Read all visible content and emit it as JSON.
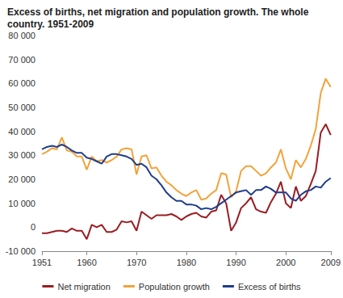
{
  "chart_data": {
    "type": "line",
    "title": "Excess of births, net migration and population growth. The whole country. 1951-2009",
    "x": [
      1951,
      1952,
      1953,
      1954,
      1955,
      1956,
      1957,
      1958,
      1959,
      1960,
      1961,
      1962,
      1963,
      1964,
      1965,
      1966,
      1967,
      1968,
      1969,
      1970,
      1971,
      1972,
      1973,
      1974,
      1975,
      1976,
      1977,
      1978,
      1979,
      1980,
      1981,
      1982,
      1983,
      1984,
      1985,
      1986,
      1987,
      1988,
      1989,
      1990,
      1991,
      1992,
      1993,
      1994,
      1995,
      1996,
      1997,
      1998,
      1999,
      2000,
      2001,
      2002,
      2003,
      2004,
      2005,
      2006,
      2007,
      2008,
      2009
    ],
    "xlim": [
      1951,
      2009
    ],
    "xticks": [
      1951,
      1960,
      1970,
      1980,
      1990,
      2000,
      2009
    ],
    "ylim": [
      -10000,
      80000
    ],
    "yticks": [
      {
        "value": -10000,
        "label": "-10 000"
      },
      0,
      {
        "value": 10000,
        "label": "10 000"
      },
      {
        "value": 20000,
        "label": "20 000"
      },
      {
        "value": 30000,
        "label": "30 000"
      },
      {
        "value": 40000,
        "label": "40 000"
      },
      {
        "value": 50000,
        "label": "50 000"
      },
      {
        "value": 60000,
        "label": "60 000"
      },
      {
        "value": 70000,
        "label": "70 000"
      },
      {
        "value": 80000,
        "label": "80 000"
      }
    ],
    "grid": false,
    "legend": "bottom",
    "series": [
      {
        "name": "Net migration",
        "color": "#9b1c22",
        "values": [
          -2500,
          -2500,
          -2000,
          -1500,
          -1500,
          -2000,
          -500,
          -1500,
          -1500,
          -5000,
          1000,
          0,
          1000,
          -2000,
          -2000,
          -1000,
          2500,
          2000,
          2500,
          -1500,
          6500,
          5000,
          3500,
          5000,
          5000,
          5000,
          5500,
          4500,
          3000,
          4500,
          5500,
          6000,
          4500,
          4000,
          6500,
          7000,
          13500,
          10000,
          -1500,
          2000,
          8000,
          10000,
          12500,
          7500,
          6500,
          6000,
          10500,
          14000,
          19000,
          10000,
          8000,
          17000,
          11000,
          13000,
          18000,
          23500,
          39500,
          43000,
          38500
        ]
      },
      {
        "name": "Population growth",
        "color": "#f2a33a",
        "values": [
          30500,
          31500,
          33000,
          32500,
          37500,
          32000,
          31500,
          29500,
          29500,
          24000,
          29500,
          27500,
          28000,
          27000,
          28000,
          29500,
          32500,
          33000,
          32500,
          22000,
          29500,
          30000,
          24500,
          25000,
          21500,
          19000,
          17500,
          15500,
          14000,
          13000,
          14500,
          15500,
          11500,
          12000,
          14000,
          15500,
          22500,
          22000,
          12500,
          15000,
          23500,
          25500,
          25500,
          23500,
          21500,
          22500,
          25000,
          27000,
          32500,
          24500,
          20000,
          28000,
          25000,
          28500,
          34000,
          41000,
          56000,
          62000,
          58500
        ]
      },
      {
        "name": "Excess of births",
        "color": "#1f3d8c",
        "values": [
          32500,
          33500,
          34000,
          33500,
          34500,
          33500,
          32000,
          31000,
          31000,
          29000,
          28500,
          27500,
          26500,
          29500,
          30500,
          30500,
          30000,
          29500,
          28500,
          26000,
          26500,
          25000,
          21500,
          20000,
          17500,
          14500,
          12500,
          11000,
          11000,
          9500,
          9500,
          9000,
          7500,
          8000,
          7500,
          8500,
          10000,
          11500,
          13000,
          14500,
          15000,
          15500,
          13500,
          15500,
          15500,
          17000,
          16000,
          14500,
          14500,
          14500,
          12000,
          11000,
          13500,
          15000,
          15500,
          17000,
          16500,
          19000,
          20500
        ]
      }
    ]
  }
}
